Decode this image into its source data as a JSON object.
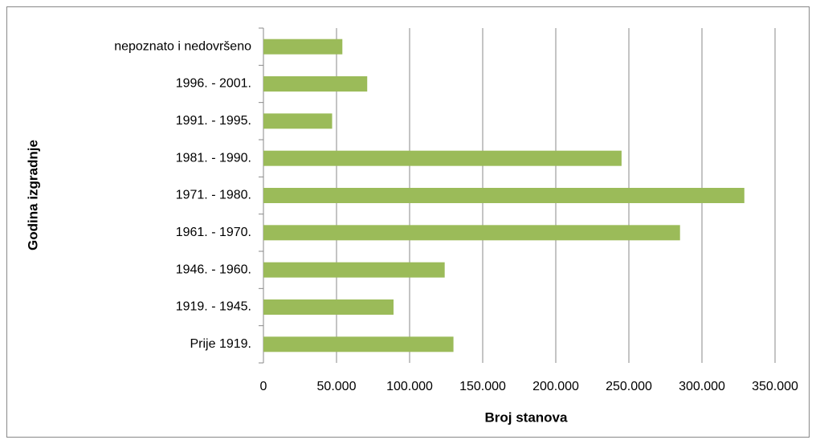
{
  "chart_data": {
    "type": "bar",
    "orientation": "horizontal",
    "x_label": "Broj stanova",
    "y_label": "Godina izgradnje",
    "categories": [
      "Prije 1919.",
      "1919. - 1945.",
      "1946. - 1960.",
      "1961. - 1970.",
      "1971. - 1980.",
      "1981. - 1990.",
      "1991. - 1995.",
      "1996. - 2001.",
      "nepoznato i nedovršeno"
    ],
    "values": [
      130000,
      89000,
      124000,
      285000,
      329000,
      245000,
      47000,
      71000,
      54000
    ],
    "color": "#9bbb59",
    "xlim": [
      0,
      350000
    ],
    "xticks": [
      0,
      {
        "value": 50000,
        "label": "50.000"
      },
      {
        "value": 100000,
        "label": "100.000"
      },
      {
        "value": 150000,
        "label": "150.000"
      },
      {
        "value": 200000,
        "label": "200.000"
      },
      {
        "value": 250000,
        "label": "250.000"
      },
      {
        "value": 300000,
        "label": "300.000"
      },
      {
        "value": 350000,
        "label": "350.000"
      }
    ],
    "grid": true
  }
}
